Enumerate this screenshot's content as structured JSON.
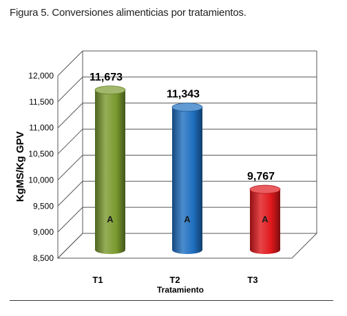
{
  "figure": {
    "caption": "Figura 5. Conversiones alimenticias por tratamientos."
  },
  "chart_data": {
    "type": "bar",
    "style": "3d-cylinder",
    "categories": [
      "T1",
      "T2",
      "T3"
    ],
    "values": [
      11673,
      11343,
      9767
    ],
    "value_labels": [
      "11,673",
      "11,343",
      "9,767"
    ],
    "group_letters": [
      "A",
      "A",
      "A"
    ],
    "bar_colors": [
      "#7a9a2e",
      "#1f6fc0",
      "#e0181c"
    ],
    "ylim": [
      8500,
      12000
    ],
    "yticks": [
      8500,
      9000,
      9500,
      10000,
      10500,
      11000,
      11500,
      12000
    ],
    "ytick_labels": [
      "8,500",
      "9,000",
      "9,500",
      "10,000",
      "10,500",
      "11,000",
      "11,500",
      "12,000"
    ],
    "ylabel": "KgMS/Kg GPV",
    "xlabel": "Tratamiento",
    "grid": true,
    "legend": "none"
  }
}
